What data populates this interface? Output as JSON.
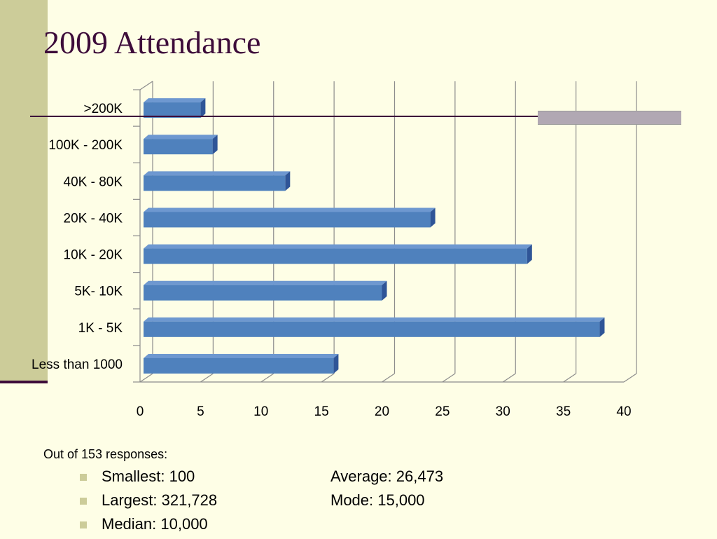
{
  "slide": {
    "title": "2009 Attendance",
    "summary_intro": "Out of 153 responses:",
    "stats_left": [
      "Smallest:  100",
      "Largest:  321,728",
      "Median: 10,000"
    ],
    "stats_right": [
      "Average:  26,473",
      "Mode:  15,000"
    ]
  },
  "colors": {
    "background": "#fefee6",
    "accent_strip": "#cccc99",
    "title_color": "#3d0c3a",
    "bar_front": "#4f81bd",
    "bar_top": "#6e98d0",
    "bar_side": "#2f5597"
  },
  "chart_data": {
    "type": "bar",
    "orientation": "horizontal",
    "style": "3d",
    "categories": [
      ">200K",
      "100K - 200K",
      "40K - 80K",
      "20K - 40K",
      "10K - 20K",
      "5K- 10K",
      "1K - 5K",
      "Less than 1000"
    ],
    "values": [
      5,
      6,
      12,
      24,
      32,
      20,
      38,
      16
    ],
    "xlim": [
      0,
      40
    ],
    "xticks": [
      0,
      5,
      10,
      15,
      20,
      25,
      30,
      35,
      40
    ],
    "grid": true,
    "legend": false
  }
}
